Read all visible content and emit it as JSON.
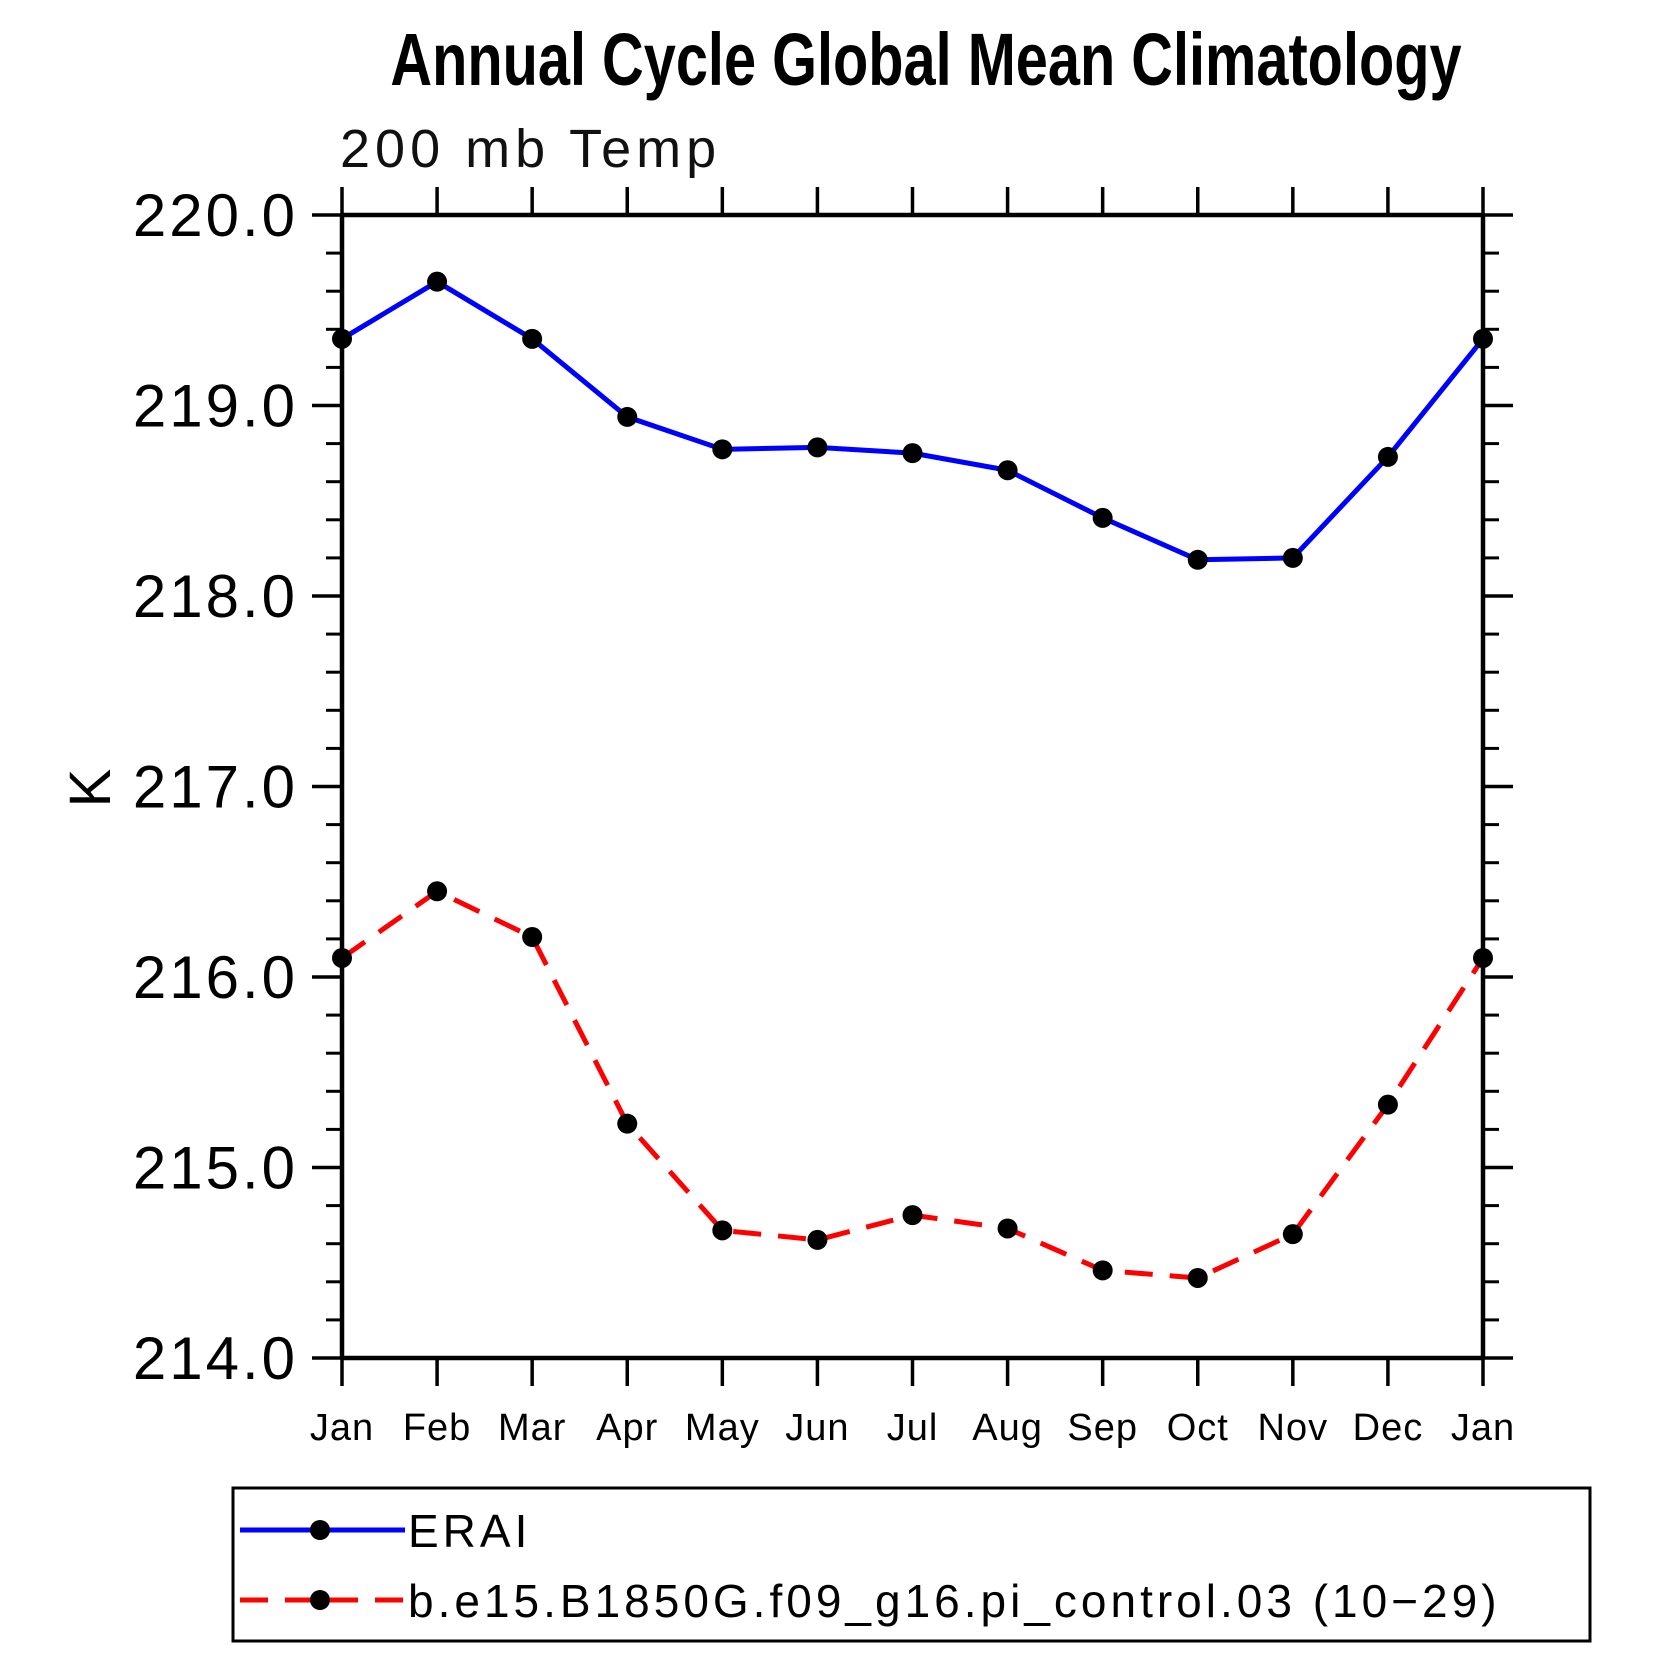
{
  "title": "Annual Cycle Global Mean Climatology",
  "subtitle": "200 mb Temp",
  "y_axis_label": "K",
  "chart_data": {
    "type": "line",
    "x_labels": [
      "Jan",
      "Feb",
      "Mar",
      "Apr",
      "May",
      "Jun",
      "Jul",
      "Aug",
      "Sep",
      "Oct",
      "Nov",
      "Dec",
      "Jan"
    ],
    "ylim": [
      214.0,
      220.0
    ],
    "y_major_step": 1.0,
    "y_minor_step": 0.2,
    "y_tick_labels": [
      "220.0",
      "219.0",
      "218.0",
      "217.0",
      "216.0",
      "215.0",
      "214.0"
    ],
    "grid": false,
    "legend_position": "bottom-left-box",
    "series": [
      {
        "name": "ERAI",
        "color": "#0000ff",
        "style": "solid",
        "marker": "circle",
        "marker_color": "#000000",
        "values": [
          219.35,
          219.65,
          219.35,
          218.94,
          218.77,
          218.78,
          218.75,
          218.66,
          218.41,
          218.19,
          218.2,
          218.73,
          219.35
        ]
      },
      {
        "name": "b.e15.B1850G.f09_g16.pi_control.03 (10−29)",
        "color": "#ff0000",
        "style": "dashed",
        "marker": "circle",
        "marker_color": "#000000",
        "values": [
          216.1,
          216.45,
          216.21,
          215.23,
          214.67,
          214.62,
          214.75,
          214.68,
          214.46,
          214.42,
          214.65,
          215.33,
          216.1
        ]
      }
    ]
  }
}
